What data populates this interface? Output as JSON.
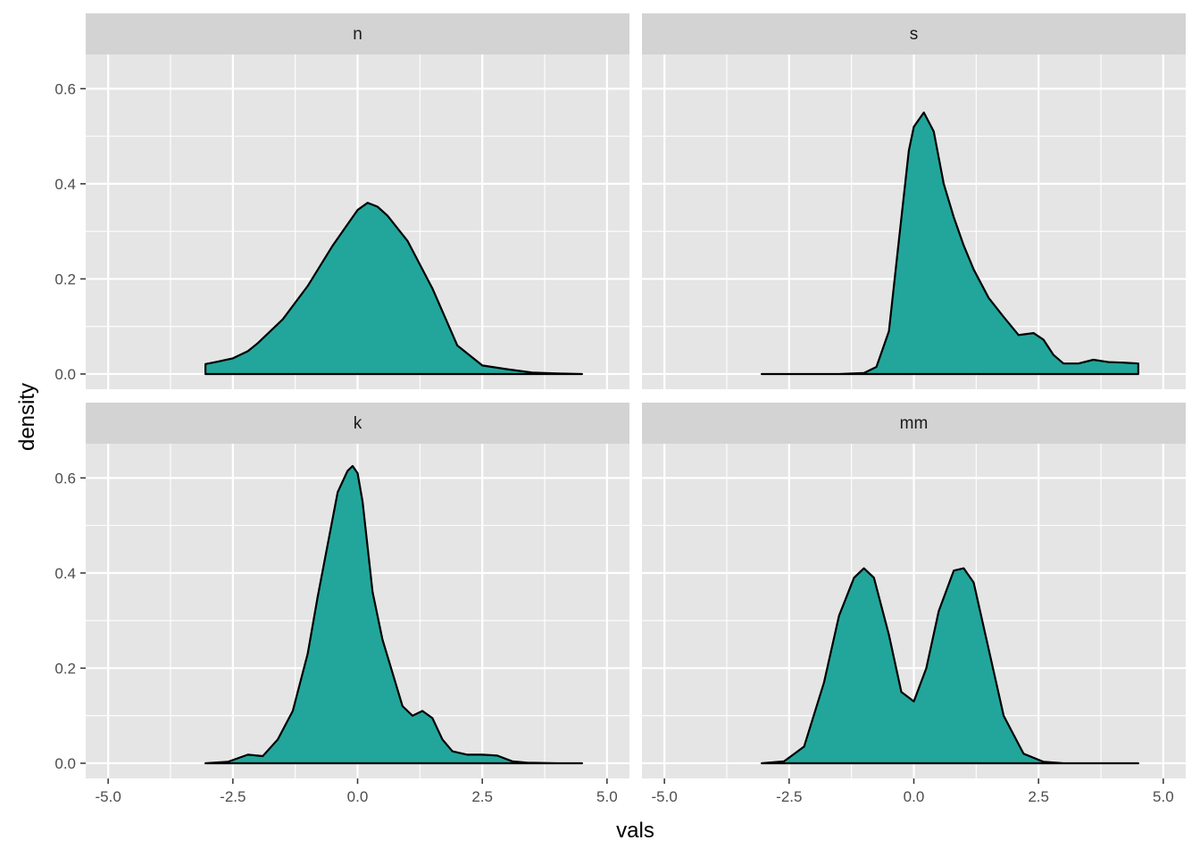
{
  "chart_data": {
    "type": "area",
    "chart_kind": "density",
    "xlabel": "vals",
    "ylabel": "density",
    "xlim": [
      -5.45,
      5.45
    ],
    "ylim": [
      -0.032,
      0.672
    ],
    "x_ticks": [
      -5.0,
      -2.5,
      0.0,
      2.5,
      5.0
    ],
    "x_tick_labels": [
      "-5.0",
      "-2.5",
      "0.0",
      "2.5",
      "5.0"
    ],
    "y_ticks": [
      0.0,
      0.2,
      0.4,
      0.6
    ],
    "y_tick_labels": [
      "0.0",
      "0.2",
      "0.4",
      "0.6"
    ],
    "grid": true,
    "colors": {
      "fill": "#22A69B",
      "outline": "#000000",
      "panel": "#E5E5E5",
      "strip": "#D3D3D3",
      "grid": "#FFFFFF"
    },
    "panels": [
      {
        "name": "n",
        "x": [
          -3.05,
          -2.8,
          -2.5,
          -2.2,
          -2.0,
          -1.5,
          -1.0,
          -0.5,
          0.0,
          0.2,
          0.4,
          0.6,
          1.0,
          1.5,
          2.0,
          2.5,
          3.0,
          3.5,
          4.0,
          4.5
        ],
        "y": [
          0.021,
          0.026,
          0.033,
          0.048,
          0.065,
          0.115,
          0.185,
          0.27,
          0.345,
          0.36,
          0.352,
          0.333,
          0.28,
          0.18,
          0.06,
          0.018,
          0.01,
          0.003,
          0.001,
          0.0
        ]
      },
      {
        "name": "s",
        "x": [
          -3.05,
          -2.0,
          -1.5,
          -1.0,
          -0.75,
          -0.5,
          -0.3,
          -0.1,
          0.0,
          0.2,
          0.4,
          0.6,
          0.8,
          1.0,
          1.2,
          1.5,
          1.8,
          2.1,
          2.4,
          2.6,
          2.8,
          3.0,
          3.3,
          3.6,
          3.9,
          4.2,
          4.5
        ],
        "y": [
          0.0,
          0.0,
          0.0,
          0.002,
          0.015,
          0.09,
          0.28,
          0.47,
          0.52,
          0.55,
          0.51,
          0.4,
          0.33,
          0.27,
          0.22,
          0.16,
          0.12,
          0.082,
          0.086,
          0.072,
          0.04,
          0.022,
          0.022,
          0.03,
          0.025,
          0.024,
          0.022
        ]
      },
      {
        "name": "k",
        "x": [
          -3.05,
          -2.6,
          -2.2,
          -1.9,
          -1.6,
          -1.3,
          -1.0,
          -0.8,
          -0.6,
          -0.4,
          -0.2,
          -0.1,
          0.0,
          0.1,
          0.3,
          0.5,
          0.7,
          0.9,
          1.1,
          1.3,
          1.5,
          1.7,
          1.9,
          2.2,
          2.5,
          2.8,
          3.1,
          3.4,
          4.0,
          4.5
        ],
        "y": [
          0.0,
          0.003,
          0.018,
          0.015,
          0.05,
          0.11,
          0.23,
          0.35,
          0.46,
          0.57,
          0.615,
          0.625,
          0.61,
          0.55,
          0.36,
          0.26,
          0.19,
          0.12,
          0.1,
          0.11,
          0.095,
          0.05,
          0.025,
          0.018,
          0.018,
          0.016,
          0.004,
          0.001,
          0.0,
          0.0
        ]
      },
      {
        "name": "mm",
        "x": [
          -3.05,
          -2.6,
          -2.2,
          -1.8,
          -1.5,
          -1.2,
          -1.0,
          -0.8,
          -0.5,
          -0.25,
          0.0,
          0.25,
          0.5,
          0.8,
          1.0,
          1.2,
          1.5,
          1.8,
          2.2,
          2.6,
          3.0,
          4.0,
          4.5
        ],
        "y": [
          0.0,
          0.004,
          0.035,
          0.17,
          0.31,
          0.39,
          0.41,
          0.39,
          0.27,
          0.15,
          0.13,
          0.2,
          0.32,
          0.405,
          0.41,
          0.38,
          0.24,
          0.1,
          0.02,
          0.003,
          0.0,
          0.0,
          0.0
        ]
      }
    ]
  }
}
